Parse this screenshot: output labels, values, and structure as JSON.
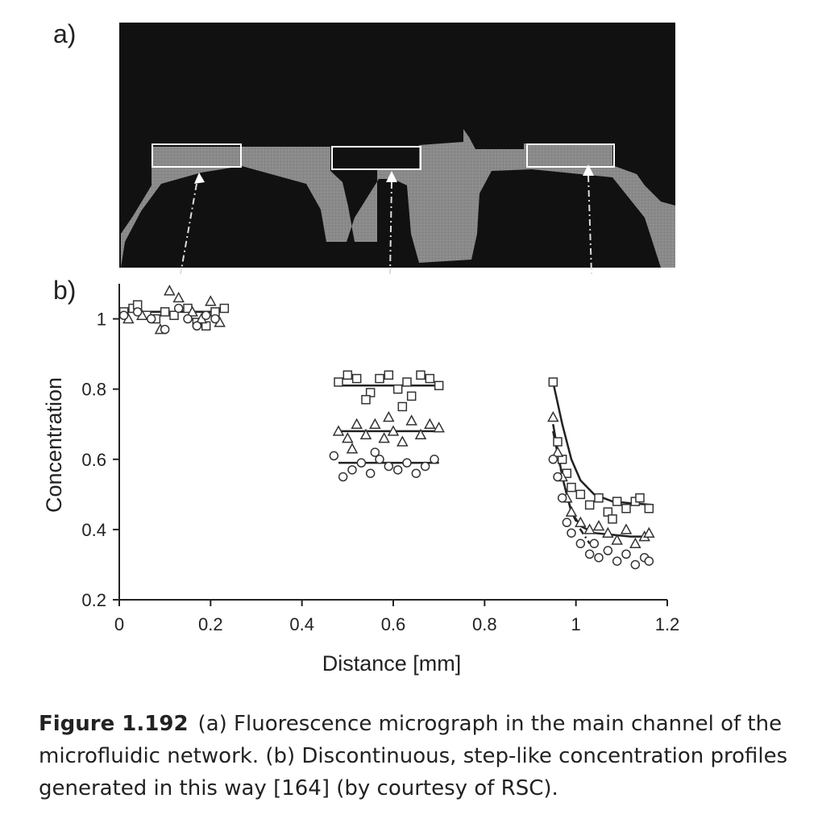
{
  "figure": {
    "panel_a_label": "a)",
    "panel_b_label": "b)",
    "caption_number": "Figure 1.192",
    "caption_text": "(a) Fluorescence micrograph in the main channel of the microfluidic network. (b) Discontinuous, step-like concentration profiles generated in this way [164] (by courtesy of RSC)."
  },
  "colors": {
    "micrograph_bg": "#111111",
    "channel": "#8a8a8a",
    "marker": "#333333",
    "text": "#222222"
  },
  "chart_data": {
    "type": "scatter",
    "xlabel": "Distance [mm]",
    "ylabel": "Concentration",
    "xlim": [
      0,
      1.2
    ],
    "ylim": [
      0.2,
      1.1
    ],
    "xticks": [
      "0",
      "0.2",
      "0.4",
      "0.6",
      "0.8",
      "1",
      "1.2"
    ],
    "xtick_values": [
      0,
      0.2,
      0.4,
      0.6,
      0.8,
      1.0,
      1.2
    ],
    "yticks": [
      "0.2",
      "0.4",
      "0.6",
      "0.8",
      "1"
    ],
    "ytick_values": [
      0.2,
      0.4,
      0.6,
      0.8,
      1.0
    ],
    "series": [
      {
        "marker": "square",
        "points": [
          [
            0.01,
            1.02
          ],
          [
            0.03,
            1.03
          ],
          [
            0.04,
            1.04
          ],
          [
            0.06,
            1.01
          ],
          [
            0.08,
            1.0
          ],
          [
            0.1,
            1.02
          ],
          [
            0.12,
            1.01
          ],
          [
            0.15,
            1.03
          ],
          [
            0.17,
            0.99
          ],
          [
            0.19,
            0.98
          ],
          [
            0.21,
            1.02
          ],
          [
            0.23,
            1.03
          ],
          [
            0.48,
            0.82
          ],
          [
            0.5,
            0.84
          ],
          [
            0.52,
            0.83
          ],
          [
            0.55,
            0.79
          ],
          [
            0.57,
            0.83
          ],
          [
            0.59,
            0.84
          ],
          [
            0.61,
            0.8
          ],
          [
            0.63,
            0.82
          ],
          [
            0.64,
            0.78
          ],
          [
            0.66,
            0.84
          ],
          [
            0.68,
            0.83
          ],
          [
            0.7,
            0.81
          ],
          [
            0.54,
            0.77
          ],
          [
            0.62,
            0.75
          ],
          [
            0.95,
            0.82
          ],
          [
            0.96,
            0.65
          ],
          [
            0.97,
            0.6
          ],
          [
            0.98,
            0.56
          ],
          [
            0.99,
            0.52
          ],
          [
            1.01,
            0.5
          ],
          [
            1.03,
            0.47
          ],
          [
            1.05,
            0.49
          ],
          [
            1.07,
            0.45
          ],
          [
            1.09,
            0.48
          ],
          [
            1.11,
            0.46
          ],
          [
            1.13,
            0.48
          ],
          [
            1.14,
            0.49
          ],
          [
            1.16,
            0.46
          ],
          [
            1.08,
            0.43
          ]
        ]
      },
      {
        "marker": "triangle",
        "points": [
          [
            0.02,
            1.0
          ],
          [
            0.05,
            1.01
          ],
          [
            0.09,
            0.97
          ],
          [
            0.11,
            1.08
          ],
          [
            0.13,
            1.06
          ],
          [
            0.16,
            1.02
          ],
          [
            0.18,
            1.0
          ],
          [
            0.2,
            1.05
          ],
          [
            0.22,
            0.99
          ],
          [
            0.48,
            0.68
          ],
          [
            0.5,
            0.66
          ],
          [
            0.52,
            0.7
          ],
          [
            0.54,
            0.67
          ],
          [
            0.56,
            0.7
          ],
          [
            0.58,
            0.66
          ],
          [
            0.6,
            0.68
          ],
          [
            0.62,
            0.65
          ],
          [
            0.64,
            0.71
          ],
          [
            0.66,
            0.67
          ],
          [
            0.68,
            0.7
          ],
          [
            0.7,
            0.69
          ],
          [
            0.59,
            0.72
          ],
          [
            0.51,
            0.63
          ],
          [
            0.95,
            0.72
          ],
          [
            0.96,
            0.62
          ],
          [
            0.97,
            0.55
          ],
          [
            0.98,
            0.49
          ],
          [
            0.99,
            0.45
          ],
          [
            1.01,
            0.42
          ],
          [
            1.03,
            0.4
          ],
          [
            1.05,
            0.41
          ],
          [
            1.07,
            0.39
          ],
          [
            1.09,
            0.37
          ],
          [
            1.11,
            0.4
          ],
          [
            1.13,
            0.36
          ],
          [
            1.15,
            0.38
          ],
          [
            1.16,
            0.39
          ]
        ]
      },
      {
        "marker": "circle",
        "points": [
          [
            0.01,
            1.01
          ],
          [
            0.04,
            1.02
          ],
          [
            0.07,
            1.0
          ],
          [
            0.1,
            0.97
          ],
          [
            0.13,
            1.03
          ],
          [
            0.15,
            1.0
          ],
          [
            0.17,
            0.98
          ],
          [
            0.19,
            1.01
          ],
          [
            0.21,
            1.0
          ],
          [
            0.47,
            0.61
          ],
          [
            0.49,
            0.55
          ],
          [
            0.51,
            0.57
          ],
          [
            0.53,
            0.59
          ],
          [
            0.55,
            0.56
          ],
          [
            0.57,
            0.6
          ],
          [
            0.59,
            0.58
          ],
          [
            0.61,
            0.57
          ],
          [
            0.63,
            0.59
          ],
          [
            0.65,
            0.56
          ],
          [
            0.67,
            0.58
          ],
          [
            0.69,
            0.6
          ],
          [
            0.56,
            0.62
          ],
          [
            0.95,
            0.6
          ],
          [
            0.96,
            0.55
          ],
          [
            0.97,
            0.49
          ],
          [
            0.98,
            0.42
          ],
          [
            0.99,
            0.39
          ],
          [
            1.01,
            0.36
          ],
          [
            1.03,
            0.33
          ],
          [
            1.05,
            0.32
          ],
          [
            1.07,
            0.34
          ],
          [
            1.09,
            0.31
          ],
          [
            1.11,
            0.33
          ],
          [
            1.13,
            0.3
          ],
          [
            1.15,
            0.32
          ],
          [
            1.16,
            0.31
          ],
          [
            1.04,
            0.36
          ]
        ]
      }
    ],
    "fit_lines": [
      {
        "style": "solid",
        "points": [
          [
            0.0,
            1.02
          ],
          [
            0.24,
            1.02
          ]
        ]
      },
      {
        "style": "solid",
        "points": [
          [
            0.48,
            0.81
          ],
          [
            0.7,
            0.81
          ]
        ]
      },
      {
        "style": "solid",
        "points": [
          [
            0.48,
            0.68
          ],
          [
            0.7,
            0.68
          ]
        ]
      },
      {
        "style": "solid",
        "points": [
          [
            0.48,
            0.59
          ],
          [
            0.7,
            0.59
          ]
        ]
      },
      {
        "style": "solid",
        "points": [
          [
            0.95,
            0.82
          ],
          [
            0.97,
            0.7
          ],
          [
            0.99,
            0.6
          ],
          [
            1.01,
            0.54
          ],
          [
            1.04,
            0.5
          ],
          [
            1.08,
            0.48
          ],
          [
            1.12,
            0.475
          ],
          [
            1.17,
            0.47
          ]
        ]
      },
      {
        "style": "solid",
        "points": [
          [
            0.95,
            0.7
          ],
          [
            0.97,
            0.55
          ],
          [
            0.99,
            0.45
          ],
          [
            1.01,
            0.41
          ],
          [
            1.04,
            0.39
          ],
          [
            1.08,
            0.385
          ],
          [
            1.12,
            0.38
          ],
          [
            1.17,
            0.38
          ]
        ]
      },
      {
        "style": "dashdot",
        "points": [
          [
            0.95,
            0.68
          ],
          [
            0.97,
            0.55
          ],
          [
            0.99,
            0.45
          ],
          [
            1.01,
            0.4
          ],
          [
            1.03,
            0.36
          ]
        ]
      }
    ]
  }
}
